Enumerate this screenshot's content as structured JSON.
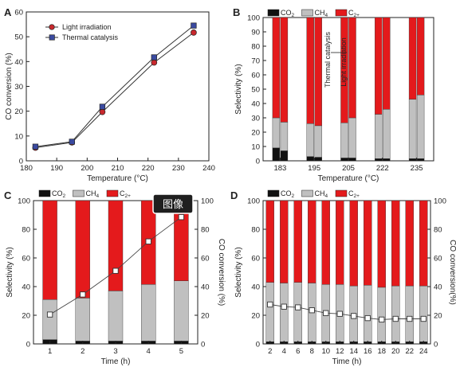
{
  "colors": {
    "co2": "#111111",
    "ch4": "#c0c0c0",
    "c2": "#e41a1c",
    "light": "#c8282d",
    "thermal": "#3a4aa0"
  },
  "overlay": {
    "label": "图像",
    "icon": "image-badge"
  },
  "chart_data": [
    {
      "panel": "A",
      "type": "line",
      "xlabel": "Temperature (°C)",
      "ylabel": "CO conversion (%)",
      "xlim": [
        180,
        240
      ],
      "ylim": [
        0,
        60
      ],
      "xticks": [
        180,
        190,
        200,
        210,
        220,
        230,
        240
      ],
      "yticks": [
        0,
        10,
        20,
        30,
        40,
        50,
        60
      ],
      "legend_position": "top-left",
      "series": [
        {
          "name": "Light irradiation",
          "marker": "circle",
          "color": "#c8282d",
          "x": [
            183,
            195,
            205,
            222,
            235
          ],
          "y": [
            5.3,
            7.4,
            19.7,
            39.6,
            51.7
          ]
        },
        {
          "name": "Thermal catalysis",
          "marker": "square",
          "color": "#3a4aa0",
          "x": [
            183,
            195,
            205,
            222,
            235
          ],
          "y": [
            5.7,
            7.7,
            21.8,
            41.7,
            54.5
          ]
        }
      ]
    },
    {
      "panel": "B",
      "type": "bar",
      "stacked": true,
      "xlabel": "Temperature (°C)",
      "ylabel": "Selectivity (%)",
      "ylim": [
        0,
        100
      ],
      "yticks": [
        0,
        10,
        20,
        30,
        40,
        50,
        60,
        70,
        80,
        90,
        100
      ],
      "categories": [
        "183",
        "195",
        "205",
        "222",
        "235"
      ],
      "bar_labels": [
        "Thermal catalysis",
        "Light irradiation"
      ],
      "legend": [
        {
          "key": "CO",
          "sub": "2"
        },
        {
          "key": "CH",
          "sub": "4"
        },
        {
          "key": "C",
          "sub": "2+"
        }
      ],
      "series": [
        {
          "name": "CO2",
          "thermal": [
            9,
            3,
            2,
            1.5,
            1.5
          ],
          "light": [
            7,
            2.5,
            2,
            1.5,
            1.5
          ]
        },
        {
          "name": "CH4",
          "thermal": [
            21,
            23,
            24.5,
            31,
            41.5
          ],
          "light": [
            20,
            22,
            28,
            34.5,
            44.5
          ]
        },
        {
          "name": "C2+",
          "thermal": [
            70,
            74,
            73.5,
            67.5,
            57
          ],
          "light": [
            73,
            75.5,
            70,
            64,
            54
          ]
        }
      ]
    },
    {
      "panel": "C",
      "type": "bar",
      "stacked": true,
      "xlabel": "Time (h)",
      "ylabel": "Selectivity (%)",
      "y2label": "CO conversion (%)",
      "ylim": [
        0,
        100
      ],
      "y2lim": [
        0,
        100
      ],
      "yticks": [
        0,
        20,
        40,
        60,
        80,
        100
      ],
      "categories": [
        "1",
        "2",
        "3",
        "4",
        "5"
      ],
      "legend": [
        {
          "key": "CO",
          "sub": "2"
        },
        {
          "key": "CH",
          "sub": "4"
        },
        {
          "key": "C",
          "sub": "2+"
        }
      ],
      "series": [
        {
          "name": "CO2",
          "values": [
            3,
            2,
            2,
            2,
            2
          ]
        },
        {
          "name": "CH4",
          "values": [
            28,
            30,
            35,
            39.5,
            42
          ]
        },
        {
          "name": "C2+",
          "values": [
            69,
            68,
            63,
            58.5,
            56
          ]
        }
      ],
      "conversion": [
        20.5,
        34.5,
        51,
        71.5,
        88.5
      ]
    },
    {
      "panel": "D",
      "type": "bar",
      "stacked": true,
      "xlabel": "Time (h)",
      "ylabel": "Selectivity (%)",
      "y2label": "CO conversion(%)",
      "ylim": [
        0,
        100
      ],
      "y2lim": [
        0,
        100
      ],
      "yticks": [
        0,
        20,
        40,
        60,
        80,
        100
      ],
      "categories": [
        "2",
        "4",
        "6",
        "8",
        "10",
        "12",
        "14",
        "16",
        "18",
        "20",
        "22",
        "24"
      ],
      "legend": [
        {
          "key": "CO",
          "sub": "2"
        },
        {
          "key": "CH",
          "sub": "4"
        },
        {
          "key": "C",
          "sub": "2+"
        }
      ],
      "series": [
        {
          "name": "CO2",
          "values": [
            1.5,
            1.5,
            1.5,
            1.5,
            1.5,
            1.5,
            1.5,
            1.5,
            1.5,
            1.5,
            1.5,
            1.5
          ]
        },
        {
          "name": "CH4",
          "values": [
            41.5,
            41,
            41.5,
            41,
            40,
            40,
            39,
            39.5,
            38,
            39,
            39,
            39
          ]
        },
        {
          "name": "C2+",
          "values": [
            57,
            57.5,
            57,
            57.5,
            58.5,
            58.5,
            59.5,
            59,
            60.5,
            59.5,
            59.5,
            59.5
          ]
        }
      ],
      "conversion": [
        27.5,
        26,
        25.5,
        23.5,
        21.5,
        21,
        19.5,
        18,
        17,
        17.5,
        17.5,
        17.5
      ]
    }
  ]
}
